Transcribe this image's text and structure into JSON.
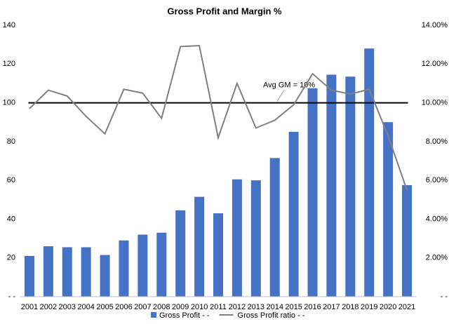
{
  "chart_data": {
    "type": "bar_line",
    "title": "Gross Profit and Margin %",
    "categories": [
      "2001",
      "2002",
      "2003",
      "2004",
      "2005",
      "2006",
      "2007",
      "2008",
      "2009",
      "2010",
      "2011",
      "2012",
      "2013",
      "2014",
      "2015",
      "2016",
      "2017",
      "2018",
      "2019",
      "2020",
      "2021"
    ],
    "series": [
      {
        "name": "Gross Profit - -",
        "type": "bar",
        "color": "#4472c4",
        "axis": "y",
        "values": [
          21,
          26,
          25.5,
          25.5,
          21.5,
          29,
          32,
          33,
          44.5,
          51.5,
          43,
          60.5,
          60,
          71.5,
          85,
          107.5,
          114.5,
          113.5,
          128,
          90,
          57.5
        ]
      },
      {
        "name": "Gross Profit ratio - -",
        "type": "line",
        "color": "#808080",
        "axis": "y2",
        "values": [
          9.7,
          10.65,
          10.35,
          9.3,
          8.4,
          10.7,
          10.5,
          9.2,
          12.9,
          12.95,
          8.2,
          11.0,
          8.7,
          9.1,
          9.9,
          11.5,
          10.65,
          10.45,
          10.7,
          8.3,
          5.5
        ]
      }
    ],
    "ylim": [
      0,
      140
    ],
    "yticks": [
      {
        "value": 0,
        "label": "- -"
      },
      20,
      40,
      60,
      80,
      100,
      120,
      140
    ],
    "y2lim": [
      0,
      14
    ],
    "y2ticks": [
      {
        "value": 0,
        "label": "- -"
      },
      {
        "value": 2,
        "label": "2.00%"
      },
      {
        "value": 4,
        "label": "4.00%"
      },
      {
        "value": 6,
        "label": "6.00%"
      },
      {
        "value": 8,
        "label": "8.00%"
      },
      {
        "value": 10,
        "label": "10.00%"
      },
      {
        "value": 12,
        "label": "12.00%"
      },
      {
        "value": 14,
        "label": "14.00%"
      }
    ],
    "reference_line": {
      "value": 10,
      "axis": "y2",
      "color": "#000000",
      "label": "Avg GM = 10%"
    },
    "grid": false,
    "legend": "bottom"
  }
}
